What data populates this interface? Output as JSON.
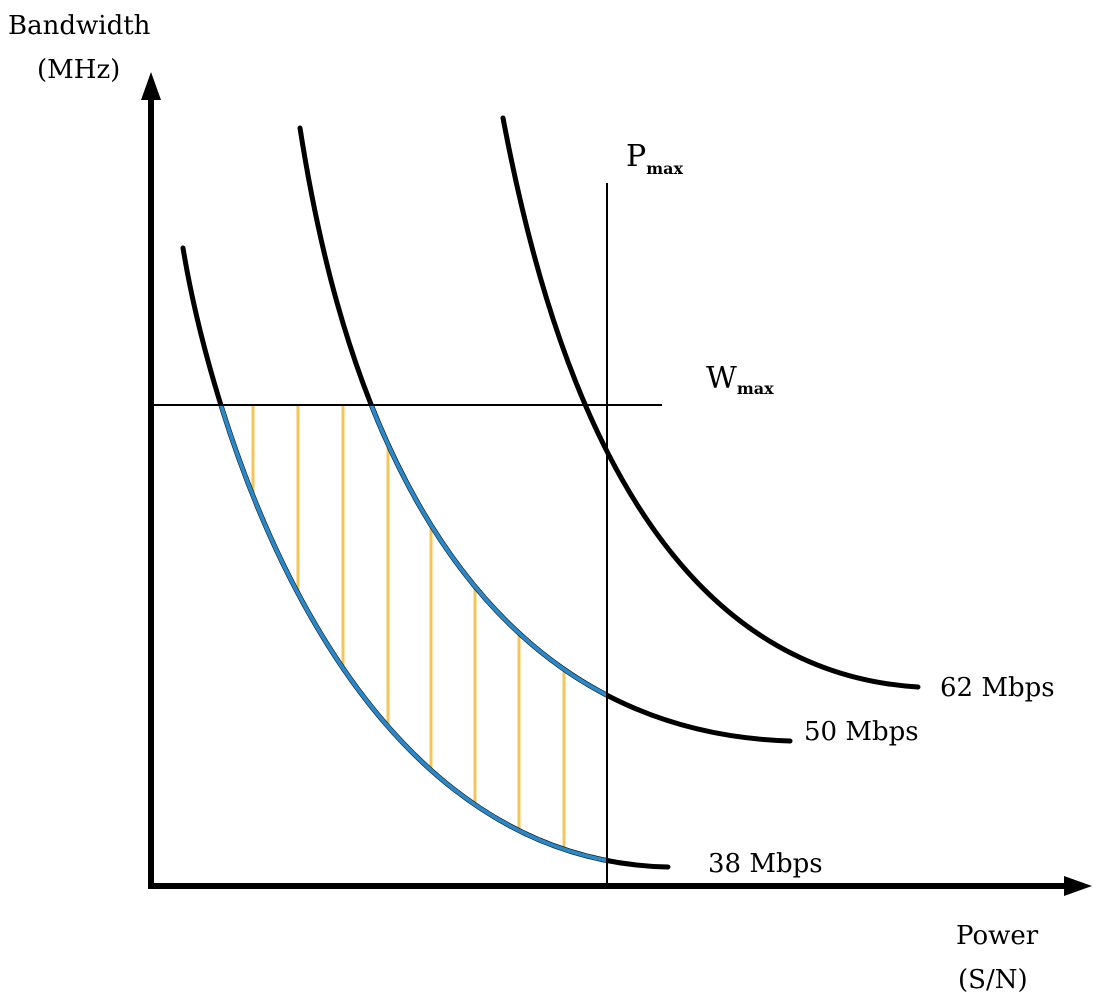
{
  "axes": {
    "y_title_line1": "Bandwidth",
    "y_title_line2": "(MHz)",
    "x_title_line1": "Power",
    "x_title_line2": "(S/N)"
  },
  "limits": {
    "power": {
      "main": "P",
      "sub": "max"
    },
    "bandwidth": {
      "main": "W",
      "sub": "max"
    }
  },
  "curves": [
    {
      "id": "38",
      "label": "38 Mbps"
    },
    {
      "id": "50",
      "label": "50 Mbps"
    },
    {
      "id": "62",
      "label": "62 Mbps"
    }
  ],
  "colors": {
    "curve": "#000000",
    "feasible_boundary": "#2a87c8",
    "hatch": "#f5c55a",
    "axis": "#000000"
  }
}
